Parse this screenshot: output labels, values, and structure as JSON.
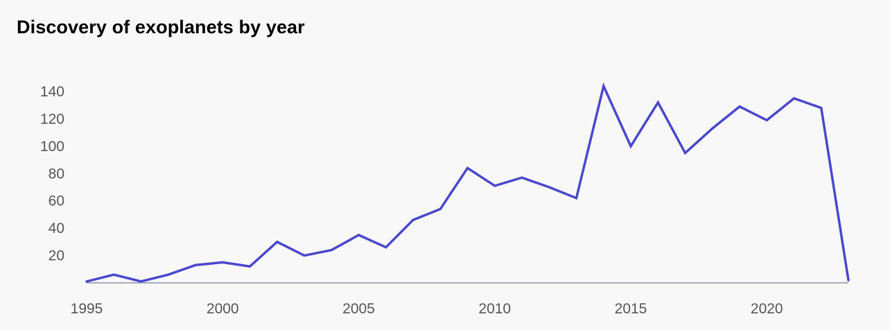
{
  "chart_data": {
    "type": "line",
    "title": "Discovery of exoplanets by year",
    "xlabel": "",
    "ylabel": "",
    "x": [
      1995,
      1996,
      1997,
      1998,
      1999,
      2000,
      2001,
      2002,
      2003,
      2004,
      2005,
      2006,
      2007,
      2008,
      2009,
      2010,
      2011,
      2012,
      2013,
      2014,
      2015,
      2016,
      2017,
      2018,
      2019,
      2020,
      2021,
      2022,
      2023
    ],
    "series": [
      {
        "values": [
          1,
          6,
          1,
          6,
          13,
          15,
          12,
          30,
          20,
          24,
          35,
          26,
          46,
          54,
          84,
          71,
          77,
          70,
          62,
          144,
          100,
          132,
          95,
          113,
          129,
          119,
          135,
          128,
          2
        ]
      }
    ],
    "x_ticks": [
      1995,
      2000,
      2005,
      2010,
      2015,
      2020
    ],
    "y_ticks": [
      20,
      40,
      60,
      80,
      100,
      120,
      140
    ],
    "xlim": [
      1995,
      2023
    ],
    "ylim": [
      0,
      140
    ],
    "grid": false,
    "legend": "none",
    "colors": {
      "line": "#4a47cc",
      "axis": "#8a90a8",
      "tick_text": "#555555"
    }
  }
}
